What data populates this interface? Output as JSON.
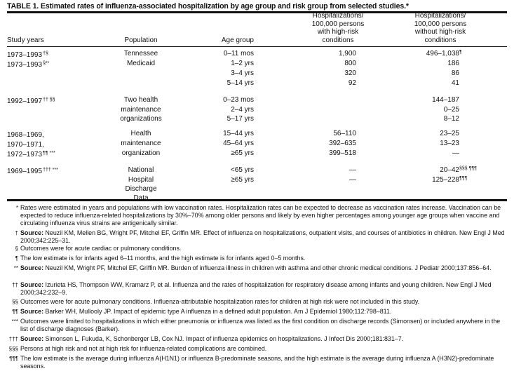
{
  "title": "TABLE 1. Estimated rates of influenza-associated hospitalization by age group and risk group from selected studies.*",
  "headers": {
    "study_years": "Study years",
    "population": "Population",
    "age_group": "Age group",
    "high_risk": [
      "Hospitalizations/",
      "100,000 persons",
      "with high-risk",
      "conditions"
    ],
    "no_high_risk": [
      "Hospitalizations/",
      "100,000 persons",
      "without high-risk",
      "conditions"
    ]
  },
  "rows": [
    {
      "study": "1973–1993",
      "study_sup": "†§",
      "pop": "Tennessee",
      "age": "0–11 mos",
      "high": "1,900",
      "low": "496–1,038",
      "low_sup": "¶"
    },
    {
      "study": "1973–1993",
      "study_sup": "§**",
      "pop": "Medicaid",
      "age": "1–2 yrs",
      "high": "800",
      "low": "186",
      "low_sup": ""
    },
    {
      "study": "",
      "study_sup": "",
      "pop": "",
      "age": "3–4 yrs",
      "high": "320",
      "low": "86",
      "low_sup": ""
    },
    {
      "study": "",
      "study_sup": "",
      "pop": "",
      "age": "5–14 yrs",
      "high": "92",
      "low": "41",
      "low_sup": ""
    },
    {
      "study": "1992–1997",
      "study_sup": "†† §§",
      "pop": "Two health",
      "age": "0–23 mos",
      "high": "",
      "low": "144–187",
      "low_sup": ""
    },
    {
      "study": "",
      "study_sup": "",
      "pop": "maintenance",
      "age": "2–4 yrs",
      "high": "",
      "low": "0–25",
      "low_sup": ""
    },
    {
      "study": "",
      "study_sup": "",
      "pop": "organizations",
      "age": "5–17 yrs",
      "high": "",
      "low": "8–12",
      "low_sup": ""
    },
    {
      "study": "1968–1969,",
      "study_sup": "",
      "pop": "Health",
      "age": "15–44 yrs",
      "high": "56–110",
      "low": "23–25",
      "low_sup": ""
    },
    {
      "study": "1970–1971,",
      "study_sup": "",
      "pop": "maintenance",
      "age": "45–64 yrs",
      "high": "392–635",
      "low": "13–23",
      "low_sup": ""
    },
    {
      "study": "1972–1973",
      "study_sup": "¶¶ ***",
      "pop": "organization",
      "age": "≥65 yrs",
      "high": "399–518",
      "low": "—",
      "low_sup": ""
    },
    {
      "study": "1969–1995",
      "study_sup": "††† ***",
      "pop": "National",
      "age": "<65 yrs",
      "high": "—",
      "low": "20–42",
      "low_sup": "§§§ ¶¶¶"
    },
    {
      "study": "",
      "study_sup": "",
      "pop": "Hospital",
      "age": "≥65 yrs",
      "high": "—",
      "low": "125–228",
      "low_sup": "¶¶¶"
    },
    {
      "study": "",
      "study_sup": "",
      "pop": "Discharge",
      "age": "",
      "high": "",
      "low": "",
      "low_sup": ""
    },
    {
      "study": "",
      "study_sup": "",
      "pop": "Data",
      "age": "",
      "high": "",
      "low": "",
      "low_sup": ""
    }
  ],
  "footnotes": [
    {
      "mark": "*",
      "label": "",
      "text": "Rates were estimated in years and populations with low vaccination rates. Hospitalization rates can be expected to decrease as vaccination rates increase. Vaccination can be expected to reduce influenza-related hospitalizations by 30%–70% among older persons and likely by even higher percentages among younger age groups when vaccine and circulating influenza virus strains are antigenically similar."
    },
    {
      "mark": "†",
      "label": "Source:",
      "text": "Neuzil KM, Mellen BG, Wright PF, Mitchel EF, Griffin MR. Effect of influenza on hospitalizations, outpatient visits, and courses of antibiotics in children. New Engl J Med 2000;342:225–31."
    },
    {
      "mark": "§",
      "label": "",
      "text": "Outcomes were for acute cardiac or pulmonary conditions."
    },
    {
      "mark": "¶",
      "label": "",
      "text": "The low estimate is for infants aged 6–11 months, and the high estimate is for infants aged 0–5 months."
    },
    {
      "mark": "**",
      "label": "Source:",
      "text": "Neuzil KM, Wright PF, Mitchel EF, Griffin MR. Burden of influenza illness in children with asthma and other chronic medical conditions. J Pediatr 2000;137:856–64."
    },
    {
      "mark": "††",
      "label": "Source:",
      "text": "Izurieta HS, Thompson WW, Kramarz P, et al. Influenza and the rates of hospitalization for respiratory disease among infants and young children. New Engl J Med 2000;342:232–9."
    },
    {
      "mark": "§§",
      "label": "",
      "text": "Outcomes were for acute pulmonary conditions. Influenza-attributable hospitalization rates for children at high risk were not included in this study."
    },
    {
      "mark": "¶¶",
      "label": "Source:",
      "text": "Barker WH, Mullooly JP. Impact of epidemic type A influenza in a defined adult population. Am J Epidemiol 1980;112:798–811."
    },
    {
      "mark": "***",
      "label": "",
      "text": "Outcomes were limited to hospitalizations in which either pneumonia or influenza was listed as the first condition on discharge records (Simonsen) or included anywhere in the list of discharge diagnoses (Barker)."
    },
    {
      "mark": "†††",
      "label": "Source:",
      "text": "Simonsen L, Fukuda, K, Schonberger LB, Cox NJ. Impact of influenza epidemics on hospitalizations. J Infect Dis 2000;181:831–7."
    },
    {
      "mark": "§§§",
      "label": "",
      "text": "Persons at high risk and not at high risk for influenza-related complications are combined."
    },
    {
      "mark": "¶¶¶",
      "label": "",
      "text": "The low estimate is the average during influenza A(H1N1) or influenza B-predominate seasons, and the high estimate is the average during influenza A (H3N2)-predominate seasons."
    }
  ]
}
